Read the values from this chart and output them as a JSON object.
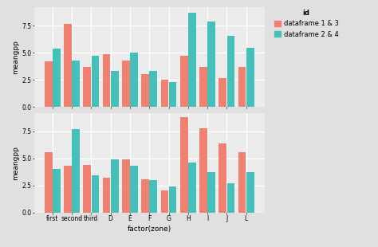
{
  "categories": [
    "first",
    "second",
    "third",
    "D",
    "E",
    "F",
    "G",
    "H",
    "I",
    "J",
    "L"
  ],
  "top_salmon": [
    4.2,
    7.7,
    3.7,
    4.9,
    4.3,
    3.0,
    2.5,
    4.7,
    3.7,
    2.7,
    3.7
  ],
  "top_teal": [
    5.4,
    4.3,
    4.7,
    3.3,
    5.0,
    3.3,
    2.3,
    8.7,
    7.9,
    6.6,
    5.5
  ],
  "bot_salmon": [
    5.6,
    4.3,
    4.4,
    3.2,
    4.9,
    3.1,
    2.0,
    8.8,
    7.8,
    6.4,
    5.6
  ],
  "bot_teal": [
    4.0,
    7.7,
    3.4,
    4.9,
    4.3,
    3.0,
    2.4,
    4.6,
    3.7,
    2.7,
    3.7
  ],
  "salmon_color": "#F08070",
  "teal_color": "#45BFBA",
  "bg_color": "#EBEBEB",
  "grid_color": "#FFFFFF",
  "xlabel": "factor(zone)",
  "ylabel_top": "meangpp",
  "ylabel_bot": "meangpp",
  "legend_title": "id",
  "legend_labels": [
    "dataframe 1 & 3",
    "dataframe 2 & 4"
  ],
  "yticks": [
    0.0,
    2.5,
    5.0,
    7.5
  ],
  "ylim": [
    0,
    9.2
  ],
  "axis_fontsize": 6.5,
  "tick_fontsize": 5.5,
  "legend_fontsize": 6.0
}
